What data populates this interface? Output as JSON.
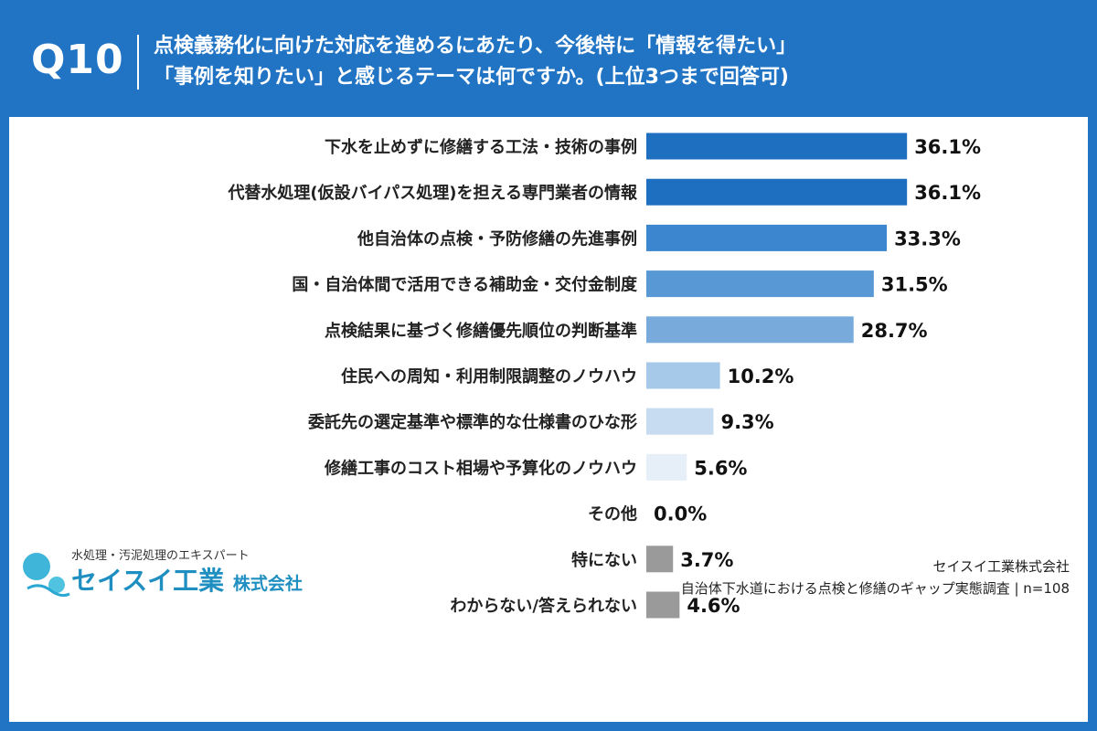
{
  "header": {
    "question_number": "Q10",
    "question_line1": "点検義務化に向けた対応を進めるにあたり、今後特に「情報を得たい」",
    "question_line2": "「事例を知りたい」と感じるテーマは何ですか。(上位3つまで回答可)"
  },
  "footer": {
    "tagline": "水処理・汚泥処理のエキスパート",
    "brand_name": "セイスイ工業",
    "brand_suffix": "株式会社",
    "source_company": "セイスイ工業株式会社",
    "source_survey": "自治体下水道における点検と修繕のギャップ実態調査 | n=108"
  },
  "chart_data": {
    "type": "bar",
    "orientation": "horizontal",
    "unit": "%",
    "xlim": [
      0,
      100
    ],
    "grid": false,
    "categories": [
      "下水を止めずに修繕する工法・技術の事例",
      "代替水処理(仮設バイパス処理)を担える専門業者の情報",
      "他自治体の点検・予防修繕の先進事例",
      "国・自治体間で活用できる補助金・交付金制度",
      "点検結果に基づく修繕優先順位の判断基準",
      "住民への周知・利用制限調整のノウハウ",
      "委託先の選定基準や標準的な仕様書のひな形",
      "修繕工事のコスト相場や予算化のノウハウ",
      "その他",
      "特にない",
      "わからない/答えられない"
    ],
    "values": [
      36.1,
      36.1,
      33.3,
      31.5,
      28.7,
      10.2,
      9.3,
      5.6,
      0.0,
      3.7,
      4.6
    ],
    "value_labels": [
      "36.1%",
      "36.1%",
      "33.3%",
      "31.5%",
      "28.7%",
      "10.2%",
      "9.3%",
      "5.6%",
      "0.0%",
      "3.7%",
      "4.6%"
    ],
    "colors": [
      "#1f6fc1",
      "#1f6fc1",
      "#3b86cf",
      "#5898d5",
      "#78abdc",
      "#a6c8e9",
      "#c7dcf0",
      "#e6eff8",
      "#e6eff8",
      "#9a9a9a",
      "#9a9a9a"
    ]
  }
}
